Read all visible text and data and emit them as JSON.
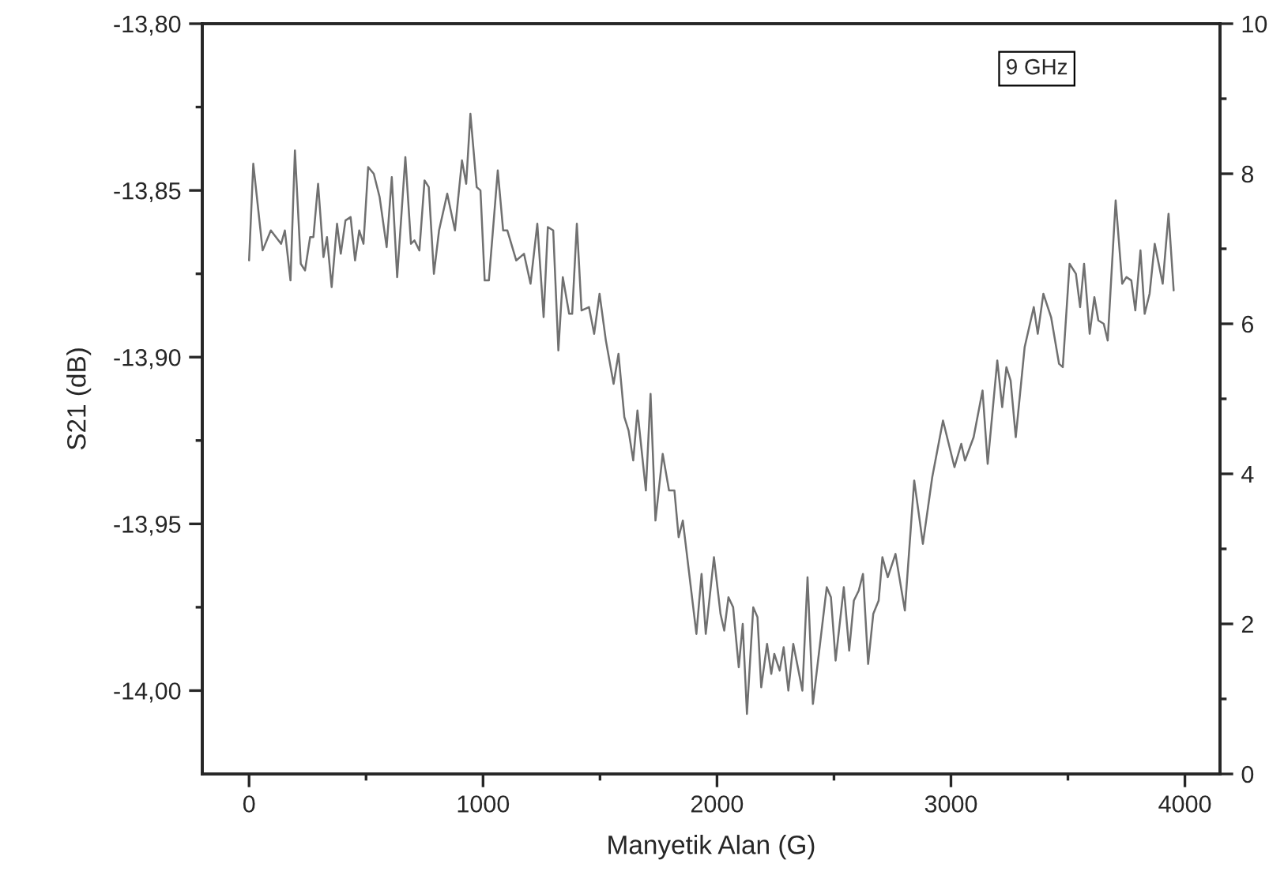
{
  "chart_data": {
    "type": "line",
    "xlabel": "Manyetik Alan (G)",
    "ylabel": "S21 (dB)",
    "annotations": [
      "9 GHz"
    ],
    "xlim": [
      -200,
      4150
    ],
    "xticks": [
      0,
      {
        "value": 500,
        "label": null
      },
      1000,
      {
        "value": 1500,
        "label": null
      },
      2000,
      {
        "value": 2500,
        "label": null
      },
      3000,
      {
        "value": 3500,
        "label": null
      },
      4000
    ],
    "ylim": [
      -14.025,
      -13.8
    ],
    "yticks": [
      {
        "value": -14.0,
        "label": "-14,00"
      },
      {
        "value": -13.975,
        "label": null
      },
      {
        "value": -13.95,
        "label": "-13,95"
      },
      {
        "value": -13.925,
        "label": null
      },
      {
        "value": -13.9,
        "label": "-13,90"
      },
      {
        "value": -13.875,
        "label": null
      },
      {
        "value": -13.85,
        "label": "-13,85"
      },
      {
        "value": -13.825,
        "label": null
      },
      {
        "value": -13.8,
        "label": "-13,80"
      }
    ],
    "y2lim": [
      0,
      10
    ],
    "y2ticks": [
      0,
      {
        "value": 1,
        "label": null
      },
      2,
      {
        "value": 3,
        "label": null
      },
      4,
      {
        "value": 5,
        "label": null
      },
      6,
      {
        "value": 7,
        "label": null
      },
      8,
      {
        "value": 9,
        "label": null
      },
      10
    ],
    "grid": false,
    "marker": "none",
    "line_style": "solid",
    "series": [
      {
        "color": "#707070",
        "x": [
          0,
          18,
          58,
          93,
          137,
          153,
          177,
          196,
          221,
          239,
          261,
          275,
          295,
          318,
          333,
          353,
          376,
          392,
          412,
          434,
          453,
          471,
          489,
          509,
          533,
          558,
          588,
          610,
          633,
          668,
          692,
          707,
          728,
          750,
          768,
          790,
          812,
          847,
          880,
          910,
          928,
          946,
          973,
          989,
          1007,
          1025,
          1063,
          1086,
          1104,
          1142,
          1175,
          1203,
          1232,
          1259,
          1277,
          1300,
          1322,
          1341,
          1368,
          1381,
          1401,
          1421,
          1453,
          1475,
          1498,
          1525,
          1558,
          1579,
          1604,
          1622,
          1642,
          1660,
          1696,
          1716,
          1737,
          1768,
          1795,
          1818,
          1836,
          1854,
          1912,
          1934,
          1952,
          1987,
          2015,
          2031,
          2049,
          2069,
          2093,
          2110,
          2128,
          2155,
          2173,
          2189,
          2214,
          2232,
          2245,
          2268,
          2285,
          2305,
          2326,
          2365,
          2387,
          2410,
          2469,
          2487,
          2507,
          2542,
          2565,
          2585,
          2606,
          2624,
          2646,
          2668,
          2691,
          2707,
          2730,
          2763,
          2803,
          2843,
          2880,
          2920,
          2966,
          3015,
          3044,
          3060,
          3097,
          3135,
          3157,
          3198,
          3219,
          3237,
          3255,
          3277,
          3315,
          3354,
          3371,
          3395,
          3428,
          3462,
          3478,
          3507,
          3534,
          3552,
          3569,
          3593,
          3613,
          3630,
          3653,
          3670,
          3704,
          3732,
          3750,
          3771,
          3788,
          3810,
          3828,
          3849,
          3871,
          3905,
          3930,
          3952
        ],
        "values": [
          -13.871,
          -13.842,
          -13.868,
          -13.862,
          -13.866,
          -13.862,
          -13.877,
          -13.838,
          -13.872,
          -13.874,
          -13.864,
          -13.864,
          -13.848,
          -13.87,
          -13.864,
          -13.879,
          -13.86,
          -13.869,
          -13.859,
          -13.858,
          -13.871,
          -13.862,
          -13.866,
          -13.843,
          -13.845,
          -13.852,
          -13.867,
          -13.846,
          -13.876,
          -13.84,
          -13.866,
          -13.865,
          -13.868,
          -13.847,
          -13.849,
          -13.875,
          -13.862,
          -13.851,
          -13.862,
          -13.841,
          -13.848,
          -13.827,
          -13.849,
          -13.85,
          -13.877,
          -13.877,
          -13.844,
          -13.862,
          -13.862,
          -13.871,
          -13.869,
          -13.878,
          -13.86,
          -13.888,
          -13.861,
          -13.862,
          -13.898,
          -13.876,
          -13.887,
          -13.887,
          -13.86,
          -13.886,
          -13.885,
          -13.893,
          -13.881,
          -13.895,
          -13.908,
          -13.899,
          -13.918,
          -13.922,
          -13.931,
          -13.916,
          -13.94,
          -13.911,
          -13.949,
          -13.929,
          -13.94,
          -13.94,
          -13.954,
          -13.949,
          -13.983,
          -13.965,
          -13.983,
          -13.96,
          -13.977,
          -13.982,
          -13.972,
          -13.975,
          -13.993,
          -13.98,
          -14.007,
          -13.975,
          -13.978,
          -13.999,
          -13.986,
          -13.995,
          -13.989,
          -13.994,
          -13.987,
          -14.0,
          -13.986,
          -14.0,
          -13.966,
          -14.004,
          -13.969,
          -13.972,
          -13.991,
          -13.969,
          -13.988,
          -13.973,
          -13.97,
          -13.965,
          -13.992,
          -13.977,
          -13.973,
          -13.96,
          -13.966,
          -13.959,
          -13.976,
          -13.937,
          -13.956,
          -13.936,
          -13.919,
          -13.933,
          -13.926,
          -13.931,
          -13.924,
          -13.91,
          -13.932,
          -13.901,
          -13.915,
          -13.903,
          -13.907,
          -13.924,
          -13.897,
          -13.885,
          -13.893,
          -13.881,
          -13.888,
          -13.902,
          -13.903,
          -13.872,
          -13.875,
          -13.885,
          -13.872,
          -13.893,
          -13.882,
          -13.889,
          -13.89,
          -13.895,
          -13.853,
          -13.878,
          -13.876,
          -13.877,
          -13.886,
          -13.868,
          -13.887,
          -13.881,
          -13.866,
          -13.878,
          -13.857,
          -13.88
        ]
      }
    ]
  }
}
